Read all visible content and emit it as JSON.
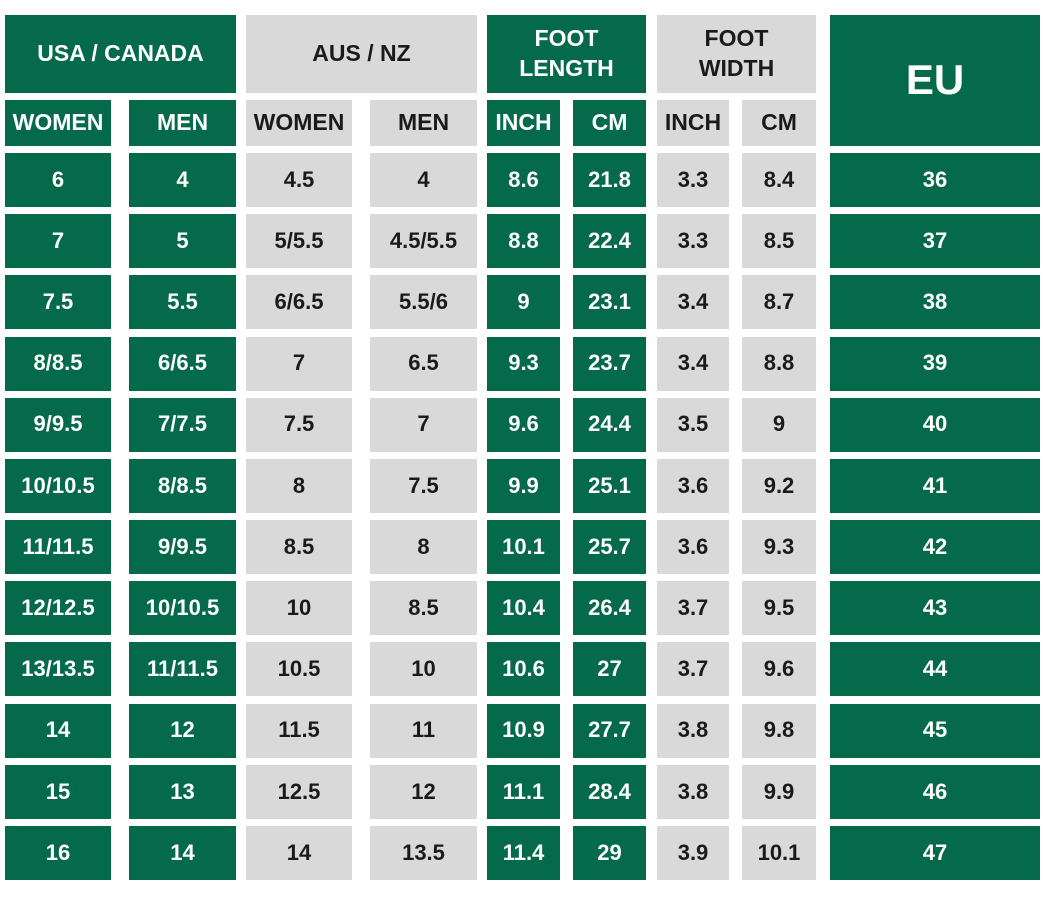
{
  "header": {
    "groups": [
      "USA / CANADA",
      "AUS / NZ",
      "FOOT LENGTH",
      "FOOT WIDTH",
      "EU"
    ],
    "subheaders": [
      "WOMEN",
      "MEN",
      "WOMEN",
      "MEN",
      "INCH",
      "CM",
      "INCH",
      "CM"
    ]
  },
  "table": {
    "rows": [
      [
        "6",
        "4",
        "4.5",
        "4",
        "8.6",
        "21.8",
        "3.3",
        "8.4",
        "36"
      ],
      [
        "7",
        "5",
        "5/5.5",
        "4.5/5.5",
        "8.8",
        "22.4",
        "3.3",
        "8.5",
        "37"
      ],
      [
        "7.5",
        "5.5",
        "6/6.5",
        "5.5/6",
        "9",
        "23.1",
        "3.4",
        "8.7",
        "38"
      ],
      [
        "8/8.5",
        "6/6.5",
        "7",
        "6.5",
        "9.3",
        "23.7",
        "3.4",
        "8.8",
        "39"
      ],
      [
        "9/9.5",
        "7/7.5",
        "7.5",
        "7",
        "9.6",
        "24.4",
        "3.5",
        "9",
        "40"
      ],
      [
        "10/10.5",
        "8/8.5",
        "8",
        "7.5",
        "9.9",
        "25.1",
        "3.6",
        "9.2",
        "41"
      ],
      [
        "11/11.5",
        "9/9.5",
        "8.5",
        "8",
        "10.1",
        "25.7",
        "3.6",
        "9.3",
        "42"
      ],
      [
        "12/12.5",
        "10/10.5",
        "10",
        "8.5",
        "10.4",
        "26.4",
        "3.7",
        "9.5",
        "43"
      ],
      [
        "13/13.5",
        "11/11.5",
        "10.5",
        "10",
        "10.6",
        "27",
        "3.7",
        "9.6",
        "44"
      ],
      [
        "14",
        "12",
        "11.5",
        "11",
        "10.9",
        "27.7",
        "3.8",
        "9.8",
        "45"
      ],
      [
        "15",
        "13",
        "12.5",
        "12",
        "11.1",
        "28.4",
        "3.8",
        "9.9",
        "46"
      ],
      [
        "16",
        "14",
        "14",
        "13.5",
        "11.4",
        "29",
        "3.9",
        "10.1",
        "47"
      ]
    ]
  }
}
